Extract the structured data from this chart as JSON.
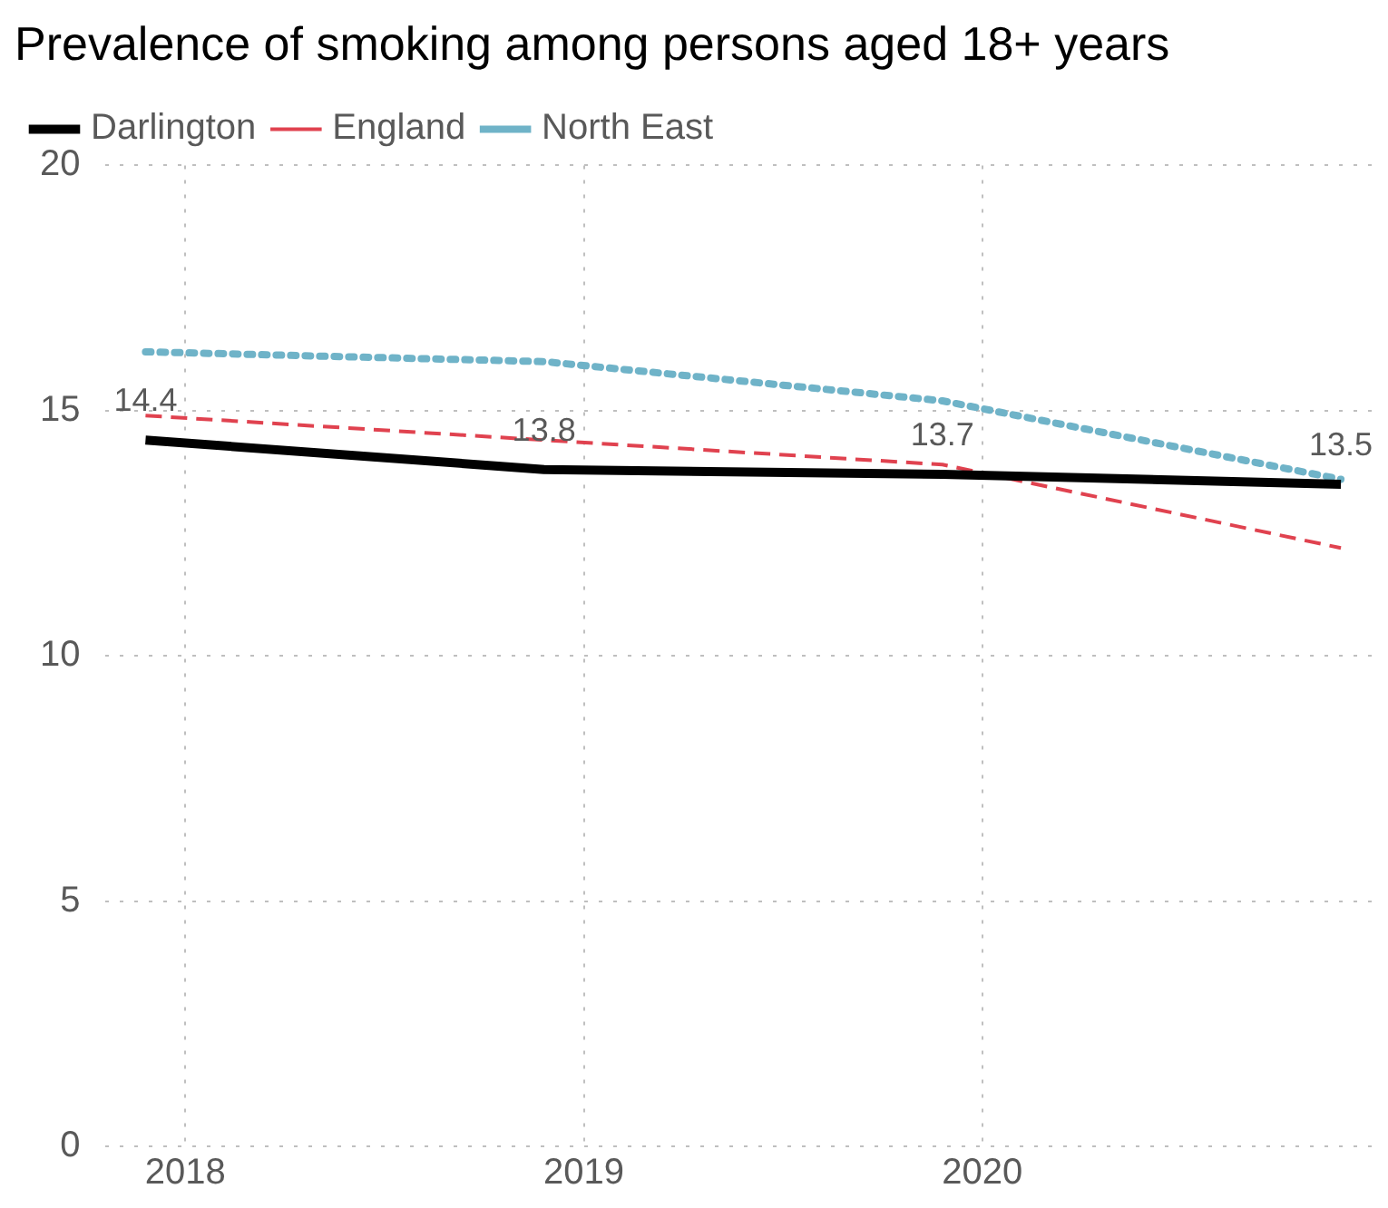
{
  "chart_data": {
    "type": "line",
    "title": "Prevalence of smoking among persons aged 18+ years",
    "x": [
      2017.9,
      2018.9,
      2019.9,
      2020.9
    ],
    "series": [
      {
        "name": "Darlington",
        "color": "#000000",
        "line_style": "solid",
        "values": [
          14.4,
          13.8,
          13.7,
          13.5
        ],
        "value_labels": [
          "14.4",
          "13.8",
          "13.7",
          "13.5"
        ]
      },
      {
        "name": "England",
        "color": "#e0424f",
        "line_style": "dashed",
        "values": [
          14.9,
          14.4,
          13.9,
          12.2
        ]
      },
      {
        "name": "North East",
        "color": "#6fb3c8",
        "line_style": "dotted",
        "values": [
          16.2,
          16.0,
          15.2,
          13.6
        ]
      }
    ],
    "xlim": [
      2017.8,
      2021.0
    ],
    "xticks": [
      2018,
      2019,
      2020
    ],
    "ylim": [
      0,
      20
    ],
    "yticks": [
      0,
      5,
      10,
      15,
      20
    ],
    "grid": true,
    "legend": "top left",
    "marker": "none"
  }
}
